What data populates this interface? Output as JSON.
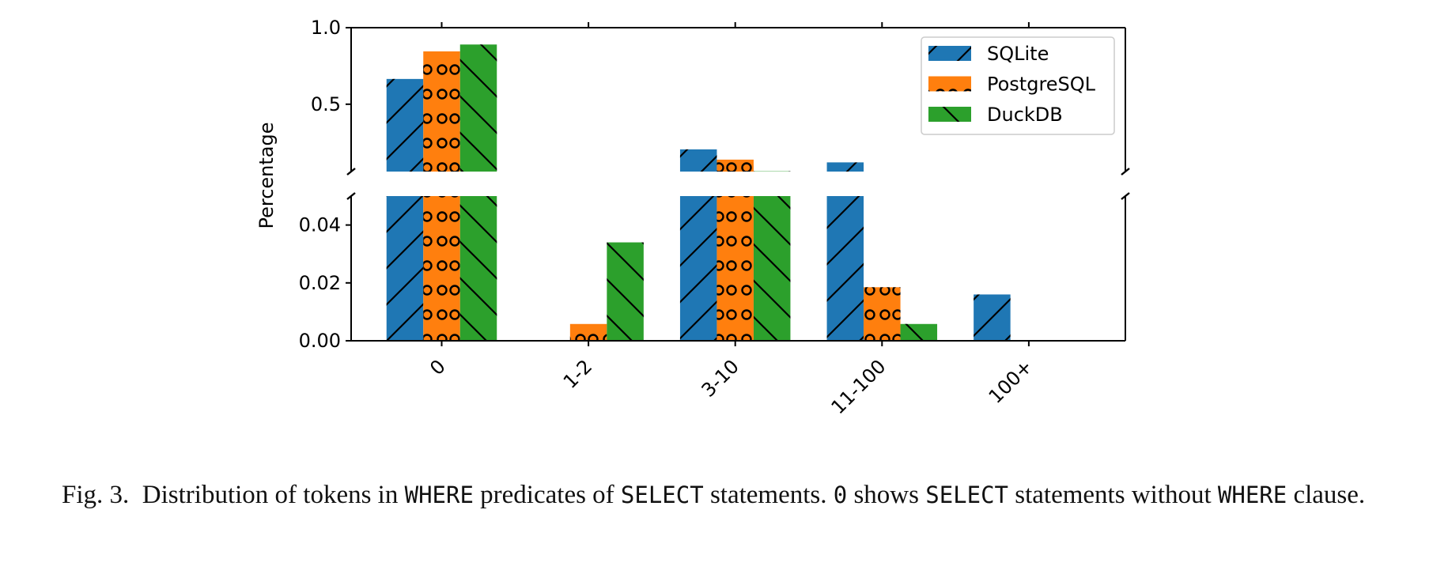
{
  "chart_data": {
    "type": "bar",
    "title": "",
    "xlabel": "",
    "ylabel": "Percentage",
    "categories": [
      "0",
      "1-2",
      "3-10",
      "11-100",
      "100+"
    ],
    "series": [
      {
        "name": "SQLite",
        "color": "#1f77b4",
        "hatch": "diagonal-forward",
        "values": [
          0.665,
          0.0,
          0.205,
          0.12,
          0.016
        ]
      },
      {
        "name": "PostgreSQL",
        "color": "#ff7f0e",
        "hatch": "circles",
        "values": [
          0.845,
          0.0058,
          0.138,
          0.0185,
          0.0
        ]
      },
      {
        "name": "DuckDB",
        "color": "#2ca02c",
        "hatch": "diagonal-backward",
        "values": [
          0.89,
          0.034,
          0.062,
          0.0058,
          0.0
        ]
      }
    ],
    "broken_axis": true,
    "upper_ylim": [
      0.06,
      1.0
    ],
    "lower_ylim": [
      0.0,
      0.05
    ],
    "upper_ticks": [
      "0.5",
      "1.0"
    ],
    "lower_ticks": [
      "0.00",
      "0.02",
      "0.04"
    ],
    "legend_position": "top-right",
    "grid": false
  },
  "caption": {
    "label": "Fig. 3.",
    "t1": "Distribution of tokens in",
    "k1": "WHERE",
    "t2": "predicates of",
    "k2": "SELECT",
    "t3": "statements.",
    "k3": "0",
    "t4": "shows",
    "k4": "SELECT",
    "t5": "statements without",
    "k5": "WHERE",
    "t6": "clause."
  }
}
